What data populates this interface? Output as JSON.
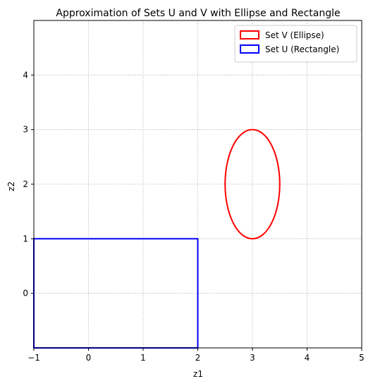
{
  "chart_data": {
    "type": "line",
    "title": "Approximation of Sets U and V with Ellipse and Rectangle",
    "xlabel": "z1",
    "ylabel": "z2",
    "xlim": [
      -1,
      5
    ],
    "ylim": [
      -1,
      5
    ],
    "xticks": [
      -1,
      0,
      1,
      2,
      3,
      4,
      5
    ],
    "yticks": [
      0,
      1,
      2,
      3,
      4
    ],
    "grid": true,
    "grid_style": "dotted",
    "legend_position": "upper right",
    "series": [
      {
        "name": "Set V (Ellipse)",
        "shape": "ellipse",
        "color": "#ff0000",
        "center": [
          3,
          2
        ],
        "semi_axis_x": 0.5,
        "semi_axis_y": 1.0
      },
      {
        "name": "Set U (Rectangle)",
        "shape": "rectangle",
        "color": "#0000ff",
        "x_range": [
          -1,
          2
        ],
        "y_range": [
          -1,
          1
        ]
      }
    ]
  }
}
